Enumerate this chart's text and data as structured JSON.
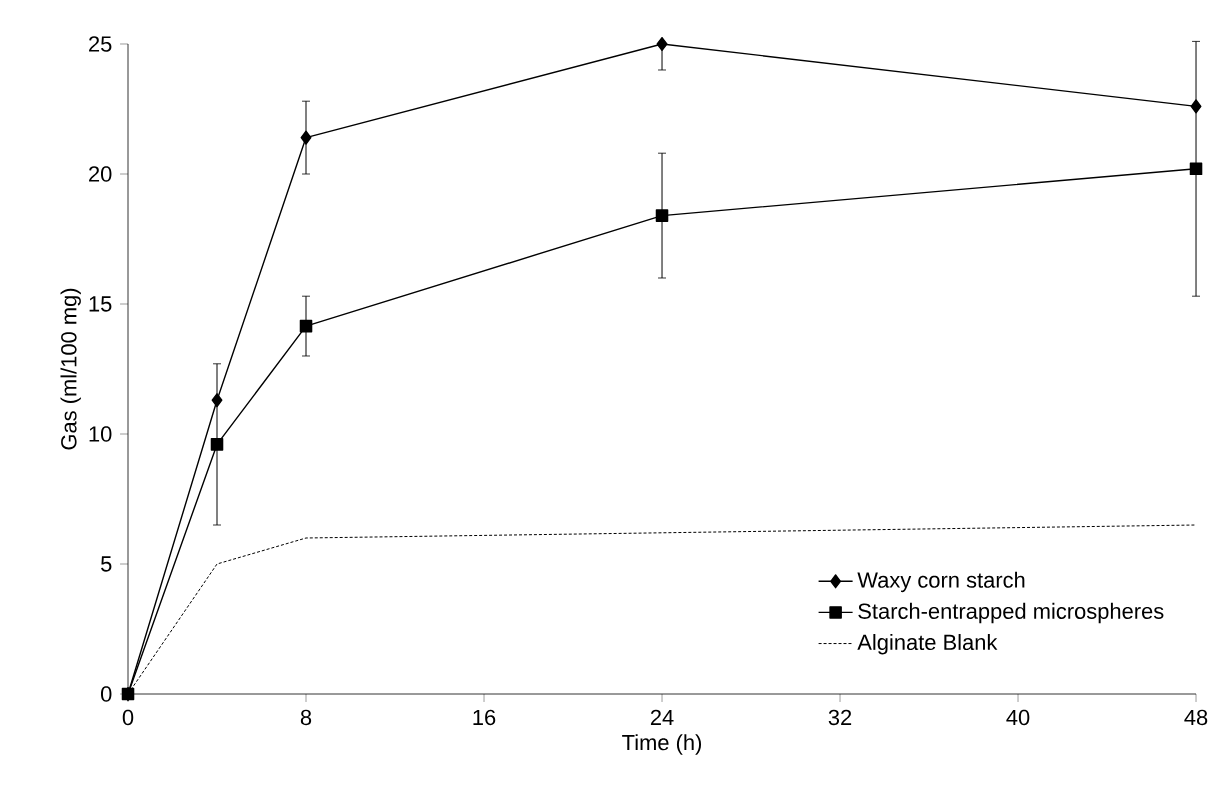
{
  "chart_data": {
    "type": "line",
    "xlabel": "Time (h)",
    "ylabel": "Gas (ml/100 mg)",
    "xlim": [
      0,
      48
    ],
    "xticks": [
      0,
      8,
      16,
      24,
      32,
      40,
      48
    ],
    "ylim": [
      0,
      25
    ],
    "yticks": [
      0,
      5,
      10,
      15,
      20,
      25
    ],
    "legend": "bottom right",
    "grid": false,
    "series": [
      {
        "name": "Waxy corn starch",
        "color": "#000000",
        "marker": "diamond",
        "line_style": "solid",
        "x": [
          0,
          4,
          8,
          24,
          48
        ],
        "values": [
          0,
          11.3,
          21.4,
          25.0,
          22.6
        ],
        "errors": [
          null,
          null,
          1.4,
          [
            24.0,
            25.0
          ],
          null
        ]
      },
      {
        "name": "Starch-entrapped microspheres",
        "color": "#000000",
        "marker": "square",
        "line_style": "solid",
        "x": [
          0,
          4,
          8,
          24,
          48
        ],
        "values": [
          0,
          9.6,
          14.15,
          18.4,
          20.2
        ],
        "errors": [
          null,
          3.1,
          1.15,
          2.4,
          4.9
        ]
      },
      {
        "name": "Alginate Blank",
        "color": "#000000",
        "marker": "none",
        "line_style": "dotted",
        "x": [
          0,
          4,
          8,
          48
        ],
        "values": [
          0,
          5.0,
          6.0,
          6.5
        ]
      }
    ]
  }
}
